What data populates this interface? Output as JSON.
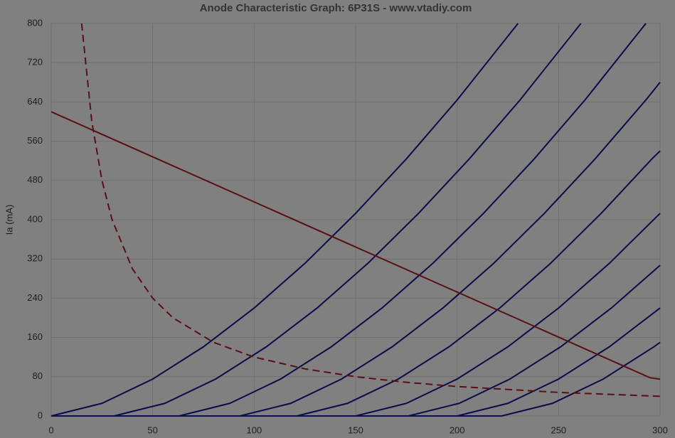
{
  "chart_data": {
    "type": "line",
    "title": "Anode Characteristic Graph: 6P31S - www.vtadiy.com",
    "y_label": "Ia (mA)",
    "xlim": [
      0,
      300
    ],
    "xticks": [
      0,
      50,
      100,
      150,
      200,
      250,
      300
    ],
    "ylim": [
      0,
      800
    ],
    "yticks": [
      0,
      80,
      160,
      240,
      320,
      400,
      480,
      560,
      640,
      720,
      800
    ],
    "grid": true,
    "series": [
      {
        "color": "#0d0a4a",
        "x": [
          0,
          25,
          50,
          75,
          100,
          125,
          150,
          175,
          200,
          225,
          230
        ],
        "values": [
          0,
          25.7,
          75.2,
          140.9,
          220,
          311,
          413,
          524,
          644,
          774,
          800
        ]
      },
      {
        "color": "#0d0a4a",
        "x": [
          0,
          31,
          56,
          81,
          106,
          131,
          156,
          181,
          206,
          231,
          256,
          261
        ],
        "values": [
          0,
          0,
          25.7,
          75.2,
          140.9,
          220,
          311,
          413,
          524,
          644,
          774,
          800
        ]
      },
      {
        "color": "#0d0a4a",
        "x": [
          0,
          63,
          88,
          113,
          138,
          163,
          188,
          213,
          238,
          263,
          288,
          293
        ],
        "values": [
          0,
          0,
          25.7,
          75.2,
          140.9,
          220,
          311,
          413,
          524,
          644,
          774,
          800
        ]
      },
      {
        "color": "#0d0a4a",
        "x": [
          0,
          93,
          118,
          143,
          168,
          193,
          218,
          243,
          268,
          293,
          300
        ],
        "values": [
          0,
          0,
          25.7,
          75.2,
          140.9,
          220,
          311,
          413,
          524,
          644,
          680
        ]
      },
      {
        "color": "#0d0a4a",
        "x": [
          0,
          121,
          146,
          171,
          196,
          221,
          246,
          271,
          296,
          300
        ],
        "values": [
          0,
          0,
          25.7,
          75.2,
          140.9,
          220,
          311,
          413,
          524,
          540
        ]
      },
      {
        "color": "#0d0a4a",
        "x": [
          0,
          150,
          175,
          200,
          225,
          250,
          275,
          300
        ],
        "values": [
          0,
          0,
          25.7,
          75.2,
          140.9,
          220,
          311,
          413
        ]
      },
      {
        "color": "#0d0a4a",
        "x": [
          0,
          176,
          201,
          226,
          251,
          276,
          300
        ],
        "values": [
          0,
          0,
          25.7,
          75.2,
          140.9,
          220,
          307
        ]
      },
      {
        "color": "#0d0a4a",
        "x": [
          0,
          200,
          225,
          250,
          275,
          300
        ],
        "values": [
          0,
          0,
          25.7,
          75.2,
          140.9,
          220
        ]
      },
      {
        "color": "#0d0a4a",
        "x": [
          0,
          222,
          247,
          272,
          297,
          300
        ],
        "values": [
          0,
          0,
          25.7,
          75.2,
          141,
          150
        ]
      },
      {
        "color": "#5a0f14",
        "x": [
          0,
          295,
          300
        ],
        "values": [
          620,
          78,
          75
        ]
      },
      {
        "color": "#5a0f14",
        "style": "dashed",
        "x": [
          15,
          20,
          25,
          30,
          40,
          50,
          60,
          80,
          100,
          125,
          150,
          175,
          200,
          250,
          300
        ],
        "values": [
          800,
          600,
          480,
          400,
          300,
          240,
          200,
          150,
          120,
          96,
          80,
          68.6,
          60,
          48,
          40
        ]
      }
    ]
  }
}
